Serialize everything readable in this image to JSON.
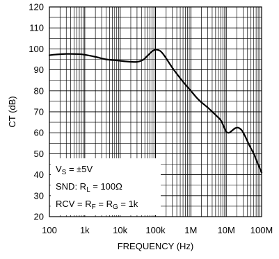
{
  "chart_data": {
    "type": "line",
    "x_scale": "log",
    "grid": true,
    "xlabel": "FREQUENCY (Hz)",
    "ylabel": "CT (dB)",
    "xlim": [
      100,
      100000000
    ],
    "ylim": [
      20,
      120
    ],
    "x_ticks": [
      {
        "value": 100,
        "label": "100"
      },
      {
        "value": 1000,
        "label": "1k"
      },
      {
        "value": 10000,
        "label": "10k"
      },
      {
        "value": 100000,
        "label": "100k"
      },
      {
        "value": 1000000,
        "label": "1M"
      },
      {
        "value": 10000000,
        "label": "10M"
      },
      {
        "value": 100000000,
        "label": "100M"
      }
    ],
    "y_ticks": [
      20,
      30,
      40,
      50,
      60,
      70,
      80,
      90,
      100,
      110,
      120
    ],
    "annotation": {
      "line1": {
        "a": "V",
        "a_sub": "S",
        "b": " = ±5V"
      },
      "line2": {
        "a": "SND: R",
        "a_sub": "L",
        "b": " = 100Ω"
      },
      "line3": {
        "a": "RCV = R",
        "a_sub": "F",
        "b": " = R",
        "b_sub": "G",
        "c": " = 1k"
      }
    },
    "series": [
      {
        "points": [
          [
            100,
            97
          ],
          [
            150,
            97.3
          ],
          [
            300,
            97.6
          ],
          [
            700,
            97.5
          ],
          [
            1000,
            97.2
          ],
          [
            2000,
            96.2
          ],
          [
            4000,
            95
          ],
          [
            8000,
            94.5
          ],
          [
            15000,
            94
          ],
          [
            30000,
            93.8
          ],
          [
            45000,
            94.8
          ],
          [
            60000,
            96.8
          ],
          [
            80000,
            98.8
          ],
          [
            100000,
            99.6
          ],
          [
            130000,
            99.2
          ],
          [
            160000,
            97.8
          ],
          [
            200000,
            95.5
          ],
          [
            300000,
            91
          ],
          [
            500000,
            86
          ],
          [
            700000,
            83
          ],
          [
            1000000,
            80
          ],
          [
            1500000,
            76.5
          ],
          [
            2000000,
            74.5
          ],
          [
            3000000,
            72
          ],
          [
            5000000,
            68.5
          ],
          [
            7000000,
            66
          ],
          [
            8500000,
            63
          ],
          [
            10000000,
            60.5
          ],
          [
            12000000,
            60
          ],
          [
            15000000,
            61.2
          ],
          [
            18000000,
            62.2
          ],
          [
            22000000,
            62.4
          ],
          [
            28000000,
            61
          ],
          [
            35000000,
            58
          ],
          [
            45000000,
            54
          ],
          [
            60000000,
            50
          ],
          [
            75000000,
            46
          ],
          [
            100000000,
            41
          ]
        ]
      }
    ]
  }
}
